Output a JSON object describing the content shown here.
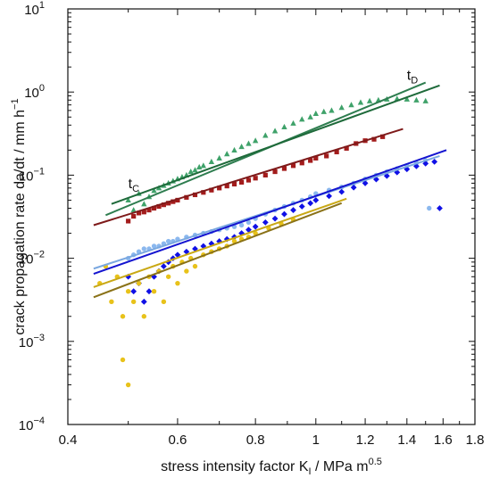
{
  "chart_data": {
    "type": "scatter",
    "title": "",
    "xlabel": {
      "main": "stress intensity factor  K",
      "sub": "I",
      "tail": "  /  MPa m",
      "sup": "0.5"
    },
    "ylabel": {
      "main": "crack propagation rate  da/dt  /  mm h",
      "sup": "−1"
    },
    "x_scale": "log",
    "y_scale": "log",
    "xlim": [
      0.4,
      1.8
    ],
    "ylim": [
      0.0001,
      10
    ],
    "grid": false,
    "legend": "none",
    "x_ticks": [
      {
        "value": 0.4,
        "label": "0.4"
      },
      {
        "value": 0.6,
        "label": "0.6"
      },
      {
        "value": 0.8,
        "label": "0.8"
      },
      {
        "value": 1.0,
        "label": "1"
      },
      {
        "value": 1.2,
        "label": "1.2"
      },
      {
        "value": 1.4,
        "label": "1.4"
      },
      {
        "value": 1.6,
        "label": "1.6"
      },
      {
        "value": 1.8,
        "label": "1.8"
      }
    ],
    "y_ticks": [
      {
        "value": 0.0001,
        "base": "10",
        "exp": "−4"
      },
      {
        "value": 0.001,
        "base": "10",
        "exp": "−3"
      },
      {
        "value": 0.01,
        "base": "10",
        "exp": "−2"
      },
      {
        "value": 0.1,
        "base": "10",
        "exp": "−1"
      },
      {
        "value": 1,
        "base": "10",
        "exp": "0"
      },
      {
        "value": 10,
        "base": "10",
        "exp": "1"
      }
    ],
    "annotations": [
      {
        "id": "tC",
        "main": "t",
        "sub": "C",
        "x": 0.5,
        "y": 0.07
      },
      {
        "id": "tD",
        "main": "t",
        "sub": "D",
        "x": 1.4,
        "y": 1.4
      }
    ],
    "series": [
      {
        "color": "#3fa26a",
        "marker": "triangle",
        "points": [
          [
            0.5,
            0.05
          ],
          [
            0.51,
            0.038
          ],
          [
            0.52,
            0.06
          ],
          [
            0.53,
            0.045
          ],
          [
            0.54,
            0.055
          ],
          [
            0.55,
            0.065
          ],
          [
            0.56,
            0.07
          ],
          [
            0.57,
            0.075
          ],
          [
            0.58,
            0.08
          ],
          [
            0.59,
            0.085
          ],
          [
            0.6,
            0.09
          ],
          [
            0.61,
            0.095
          ],
          [
            0.62,
            0.1
          ],
          [
            0.63,
            0.11
          ],
          [
            0.64,
            0.115
          ],
          [
            0.65,
            0.125
          ],
          [
            0.66,
            0.13
          ],
          [
            0.68,
            0.145
          ],
          [
            0.7,
            0.16
          ],
          [
            0.72,
            0.18
          ],
          [
            0.74,
            0.2
          ],
          [
            0.76,
            0.22
          ],
          [
            0.78,
            0.24
          ],
          [
            0.8,
            0.26
          ],
          [
            0.83,
            0.3
          ],
          [
            0.86,
            0.34
          ],
          [
            0.89,
            0.38
          ],
          [
            0.92,
            0.42
          ],
          [
            0.95,
            0.47
          ],
          [
            0.98,
            0.5
          ],
          [
            1.0,
            0.55
          ],
          [
            1.03,
            0.58
          ],
          [
            1.06,
            0.6
          ],
          [
            1.1,
            0.65
          ],
          [
            1.14,
            0.7
          ],
          [
            1.18,
            0.75
          ],
          [
            1.22,
            0.78
          ],
          [
            1.26,
            0.8
          ],
          [
            1.3,
            0.82
          ],
          [
            1.35,
            0.83
          ],
          [
            1.4,
            0.82
          ],
          [
            1.45,
            0.8
          ],
          [
            1.5,
            0.78
          ]
        ],
        "fits": [
          {
            "x": [
              0.46,
              1.5
            ],
            "y": [
              0.033,
              1.3
            ],
            "color": "#2e7d4f"
          },
          {
            "x": [
              0.47,
              1.58
            ],
            "y": [
              0.045,
              1.2
            ],
            "color": "#1e6a3a"
          }
        ]
      },
      {
        "color": "#a31c1c",
        "marker": "square",
        "points": [
          [
            0.5,
            0.028
          ],
          [
            0.51,
            0.032
          ],
          [
            0.52,
            0.035
          ],
          [
            0.53,
            0.036
          ],
          [
            0.54,
            0.038
          ],
          [
            0.55,
            0.04
          ],
          [
            0.56,
            0.042
          ],
          [
            0.57,
            0.044
          ],
          [
            0.58,
            0.046
          ],
          [
            0.59,
            0.048
          ],
          [
            0.6,
            0.05
          ],
          [
            0.62,
            0.054
          ],
          [
            0.64,
            0.058
          ],
          [
            0.66,
            0.062
          ],
          [
            0.68,
            0.066
          ],
          [
            0.7,
            0.07
          ],
          [
            0.72,
            0.074
          ],
          [
            0.74,
            0.078
          ],
          [
            0.76,
            0.082
          ],
          [
            0.78,
            0.087
          ],
          [
            0.8,
            0.092
          ],
          [
            0.83,
            0.1
          ],
          [
            0.86,
            0.11
          ],
          [
            0.89,
            0.12
          ],
          [
            0.92,
            0.13
          ],
          [
            0.95,
            0.14
          ],
          [
            0.98,
            0.15
          ],
          [
            1.0,
            0.16
          ],
          [
            1.04,
            0.17
          ],
          [
            1.08,
            0.19
          ],
          [
            1.12,
            0.21
          ],
          [
            1.16,
            0.24
          ],
          [
            1.2,
            0.26
          ],
          [
            1.24,
            0.27
          ],
          [
            1.28,
            0.29
          ]
        ],
        "fits": [
          {
            "x": [
              0.44,
              1.38
            ],
            "y": [
              0.025,
              0.36
            ],
            "color": "#7e1a1a"
          }
        ]
      },
      {
        "color": "#8bb8ee",
        "marker": "circle",
        "points": [
          [
            0.5,
            0.01
          ],
          [
            0.51,
            0.011
          ],
          [
            0.52,
            0.012
          ],
          [
            0.53,
            0.013
          ],
          [
            0.54,
            0.013
          ],
          [
            0.55,
            0.014
          ],
          [
            0.56,
            0.014
          ],
          [
            0.57,
            0.015
          ],
          [
            0.58,
            0.016
          ],
          [
            0.59,
            0.016
          ],
          [
            0.6,
            0.017
          ],
          [
            0.62,
            0.018
          ],
          [
            0.64,
            0.019
          ],
          [
            0.66,
            0.02
          ],
          [
            0.68,
            0.021
          ],
          [
            0.7,
            0.022
          ],
          [
            0.72,
            0.023
          ],
          [
            0.74,
            0.024
          ],
          [
            0.76,
            0.025
          ],
          [
            0.78,
            0.027
          ],
          [
            0.8,
            0.03
          ],
          [
            0.83,
            0.034
          ],
          [
            0.86,
            0.038
          ],
          [
            0.89,
            0.042
          ],
          [
            0.92,
            0.046
          ],
          [
            0.95,
            0.05
          ],
          [
            0.98,
            0.055
          ],
          [
            1.0,
            0.06
          ],
          [
            1.05,
            0.066
          ],
          [
            1.1,
            0.072
          ],
          [
            1.15,
            0.08
          ],
          [
            1.2,
            0.09
          ],
          [
            1.25,
            0.1
          ],
          [
            1.3,
            0.11
          ],
          [
            1.35,
            0.12
          ],
          [
            1.4,
            0.13
          ],
          [
            1.45,
            0.14
          ],
          [
            1.5,
            0.15
          ],
          [
            1.52,
            0.04
          ]
        ],
        "fits": [
          {
            "x": [
              0.44,
              1.58
            ],
            "y": [
              0.0075,
              0.17
            ],
            "color": "#7aa8e0"
          }
        ]
      },
      {
        "color": "#1010e6",
        "marker": "diamond",
        "points": [
          [
            0.5,
            0.006
          ],
          [
            0.51,
            0.004
          ],
          [
            0.52,
            0.005
          ],
          [
            0.53,
            0.003
          ],
          [
            0.54,
            0.004
          ],
          [
            0.55,
            0.006
          ],
          [
            0.56,
            0.007
          ],
          [
            0.57,
            0.008
          ],
          [
            0.58,
            0.009
          ],
          [
            0.59,
            0.01
          ],
          [
            0.6,
            0.011
          ],
          [
            0.62,
            0.012
          ],
          [
            0.64,
            0.013
          ],
          [
            0.66,
            0.014
          ],
          [
            0.68,
            0.015
          ],
          [
            0.7,
            0.016
          ],
          [
            0.72,
            0.017
          ],
          [
            0.74,
            0.018
          ],
          [
            0.76,
            0.02
          ],
          [
            0.78,
            0.022
          ],
          [
            0.8,
            0.024
          ],
          [
            0.83,
            0.027
          ],
          [
            0.86,
            0.03
          ],
          [
            0.89,
            0.034
          ],
          [
            0.92,
            0.038
          ],
          [
            0.95,
            0.042
          ],
          [
            0.98,
            0.046
          ],
          [
            1.0,
            0.05
          ],
          [
            1.05,
            0.056
          ],
          [
            1.1,
            0.063
          ],
          [
            1.15,
            0.071
          ],
          [
            1.2,
            0.08
          ],
          [
            1.25,
            0.089
          ],
          [
            1.3,
            0.098
          ],
          [
            1.35,
            0.108
          ],
          [
            1.4,
            0.118
          ],
          [
            1.45,
            0.128
          ],
          [
            1.5,
            0.138
          ],
          [
            1.55,
            0.145
          ],
          [
            1.58,
            0.04
          ]
        ],
        "fits": [
          {
            "x": [
              0.44,
              1.62
            ],
            "y": [
              0.0065,
              0.2
            ],
            "color": "#1414d0"
          }
        ]
      },
      {
        "color": "#e8c21a",
        "marker": "circle",
        "points": [
          [
            0.45,
            0.005
          ],
          [
            0.46,
            0.008
          ],
          [
            0.47,
            0.003
          ],
          [
            0.48,
            0.006
          ],
          [
            0.49,
            0.002
          ],
          [
            0.49,
            0.0006
          ],
          [
            0.5,
            0.004
          ],
          [
            0.5,
            0.0003
          ],
          [
            0.51,
            0.003
          ],
          [
            0.52,
            0.005
          ],
          [
            0.53,
            0.002
          ],
          [
            0.54,
            0.006
          ],
          [
            0.55,
            0.004
          ],
          [
            0.56,
            0.007
          ],
          [
            0.57,
            0.003
          ],
          [
            0.58,
            0.006
          ],
          [
            0.59,
            0.008
          ],
          [
            0.6,
            0.005
          ],
          [
            0.61,
            0.009
          ],
          [
            0.62,
            0.007
          ],
          [
            0.63,
            0.01
          ],
          [
            0.64,
            0.008
          ],
          [
            0.66,
            0.011
          ],
          [
            0.68,
            0.012
          ],
          [
            0.7,
            0.013
          ],
          [
            0.72,
            0.014
          ],
          [
            0.74,
            0.016
          ],
          [
            0.76,
            0.017
          ],
          [
            0.78,
            0.018
          ],
          [
            0.8,
            0.02
          ],
          [
            0.84,
            0.023
          ],
          [
            0.88,
            0.026
          ],
          [
            0.92,
            0.029
          ]
        ],
        "fits": [
          {
            "x": [
              0.44,
              1.12
            ],
            "y": [
              0.0045,
              0.052
            ],
            "color": "#c9a814"
          },
          {
            "x": [
              0.44,
              1.1
            ],
            "y": [
              0.0034,
              0.046
            ],
            "color": "#8a7218"
          }
        ]
      }
    ]
  }
}
